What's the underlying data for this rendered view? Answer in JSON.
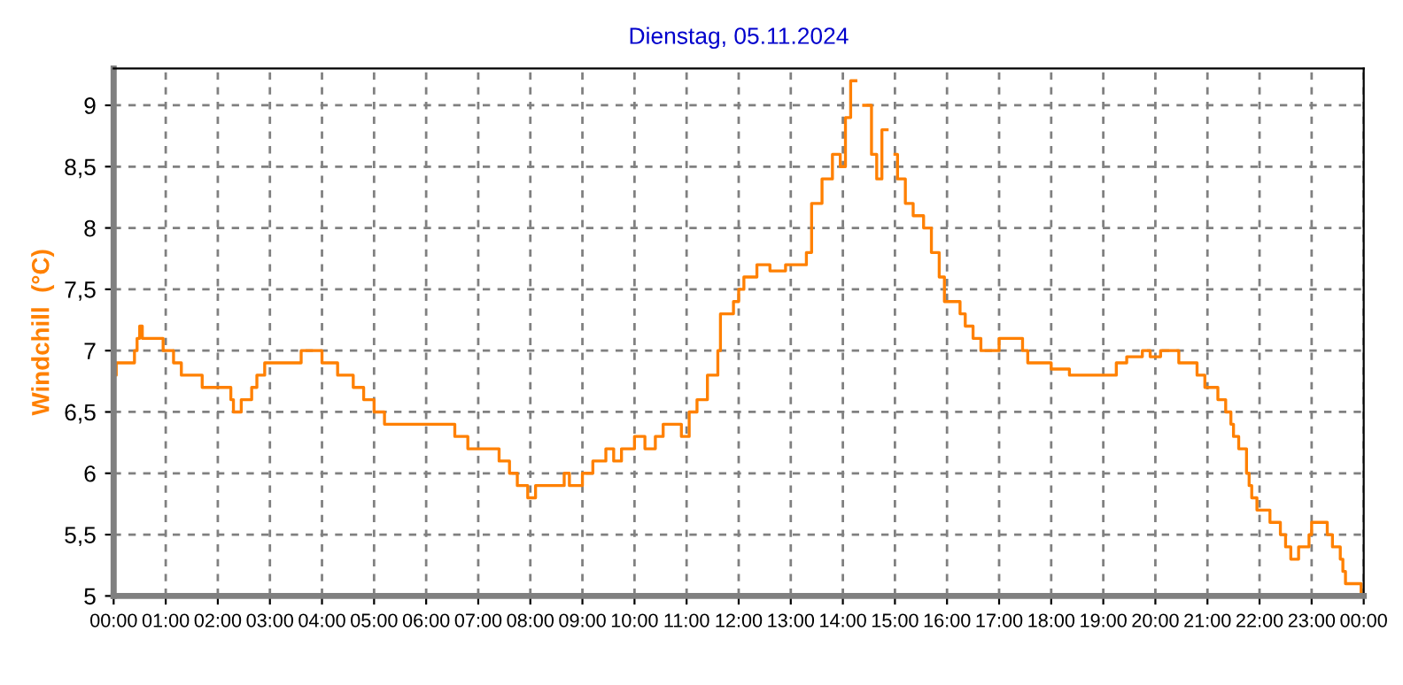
{
  "chart_data": {
    "type": "step",
    "title": "Dienstag, 05.11.2024",
    "ylabel": "Windchill  (°C)",
    "xlim": [
      0,
      24
    ],
    "ylim": [
      5,
      9.3
    ],
    "xticks": [
      {
        "value": 0,
        "label": "00:00"
      },
      {
        "value": 1,
        "label": "01:00"
      },
      {
        "value": 2,
        "label": "02:00"
      },
      {
        "value": 3,
        "label": "03:00"
      },
      {
        "value": 4,
        "label": "04:00"
      },
      {
        "value": 5,
        "label": "05:00"
      },
      {
        "value": 6,
        "label": "06:00"
      },
      {
        "value": 7,
        "label": "07:00"
      },
      {
        "value": 8,
        "label": "08:00"
      },
      {
        "value": 9,
        "label": "09:00"
      },
      {
        "value": 10,
        "label": "10:00"
      },
      {
        "value": 11,
        "label": "11:00"
      },
      {
        "value": 12,
        "label": "12:00"
      },
      {
        "value": 13,
        "label": "13:00"
      },
      {
        "value": 14,
        "label": "14:00"
      },
      {
        "value": 15,
        "label": "15:00"
      },
      {
        "value": 16,
        "label": "16:00"
      },
      {
        "value": 17,
        "label": "17:00"
      },
      {
        "value": 18,
        "label": "18:00"
      },
      {
        "value": 19,
        "label": "19:00"
      },
      {
        "value": 20,
        "label": "20:00"
      },
      {
        "value": 21,
        "label": "21:00"
      },
      {
        "value": 22,
        "label": "22:00"
      },
      {
        "value": 23,
        "label": "23:00"
      },
      {
        "value": 24,
        "label": "00:00"
      }
    ],
    "yticks": [
      5,
      {
        "value": 5.5,
        "label": "5,5"
      },
      6,
      {
        "value": 6.5,
        "label": "6,5"
      },
      7,
      {
        "value": 7.5,
        "label": "7,5"
      },
      8,
      {
        "value": 8.5,
        "label": "8,5"
      },
      9
    ],
    "grid": true,
    "legend": false,
    "series": [
      {
        "color": "#ff8000",
        "x": [
          0,
          0.05,
          0.35,
          0.4,
          0.45,
          0.5,
          0.55,
          0.95,
          1.15,
          1.3,
          1.6,
          1.7,
          2.1,
          2.25,
          2.3,
          2.45,
          2.65,
          2.75,
          2.9,
          3.6,
          4.0,
          4.3,
          4.6,
          4.8,
          5.0,
          5.2,
          6.3,
          6.55,
          6.8,
          7.2,
          7.4,
          7.6,
          7.75,
          7.95,
          8.1,
          8.5,
          8.65,
          8.75,
          9.0,
          9.2,
          9.45,
          9.6,
          9.75,
          10.0,
          10.2,
          10.4,
          10.55,
          10.9,
          11.05,
          11.2,
          11.4,
          11.6,
          11.65,
          11.9,
          12.0,
          12.1,
          12.35,
          12.6,
          12.9,
          13.3,
          13.4,
          13.6,
          13.8,
          13.95,
          14.05,
          14.15,
          14.25,
          14.4,
          14.55,
          14.65,
          14.75,
          14.85,
          15.0,
          15.05,
          15.2,
          15.35,
          15.55,
          15.7,
          15.85,
          15.95,
          16.25,
          16.35,
          16.5,
          16.65,
          17.0,
          17.45,
          17.55,
          18.0,
          18.35,
          19.25,
          19.45,
          19.75,
          19.9,
          20.1,
          20.45,
          20.8,
          20.95,
          21.2,
          21.35,
          21.45,
          21.5,
          21.6,
          21.75,
          21.8,
          21.85,
          21.95,
          22.2,
          22.4,
          22.5,
          22.6,
          22.75,
          22.95,
          23.0,
          23.3,
          23.4,
          23.55,
          23.6,
          23.65,
          23.95,
          24.0
        ],
        "values": [
          6.8,
          6.9,
          6.9,
          7.0,
          7.1,
          7.2,
          7.1,
          7.0,
          6.9,
          6.8,
          6.8,
          6.7,
          6.7,
          6.6,
          6.5,
          6.6,
          6.7,
          6.8,
          6.9,
          7.0,
          6.9,
          6.8,
          6.7,
          6.6,
          6.5,
          6.4,
          6.4,
          6.3,
          6.2,
          6.2,
          6.1,
          6.0,
          5.9,
          5.8,
          5.9,
          5.9,
          6.0,
          5.9,
          6.0,
          6.1,
          6.2,
          6.1,
          6.2,
          6.3,
          6.2,
          6.3,
          6.4,
          6.3,
          6.5,
          6.6,
          6.8,
          7.0,
          7.3,
          7.4,
          7.5,
          7.6,
          7.7,
          7.65,
          7.7,
          7.8,
          8.2,
          8.4,
          8.6,
          8.5,
          8.9,
          9.2,
          null,
          9.0,
          8.6,
          8.4,
          8.8,
          null,
          8.6,
          8.4,
          8.2,
          8.1,
          8.0,
          7.8,
          7.6,
          7.4,
          7.3,
          7.2,
          7.1,
          7.0,
          7.1,
          7.0,
          6.9,
          6.85,
          6.8,
          6.9,
          6.95,
          7.0,
          6.95,
          7.0,
          6.9,
          6.8,
          6.7,
          6.6,
          6.5,
          6.4,
          6.3,
          6.2,
          6.0,
          5.9,
          5.8,
          5.7,
          5.6,
          5.5,
          5.4,
          5.3,
          5.4,
          5.5,
          5.6,
          5.5,
          5.4,
          5.3,
          5.2,
          5.1,
          5.0,
          5.0
        ]
      }
    ]
  }
}
